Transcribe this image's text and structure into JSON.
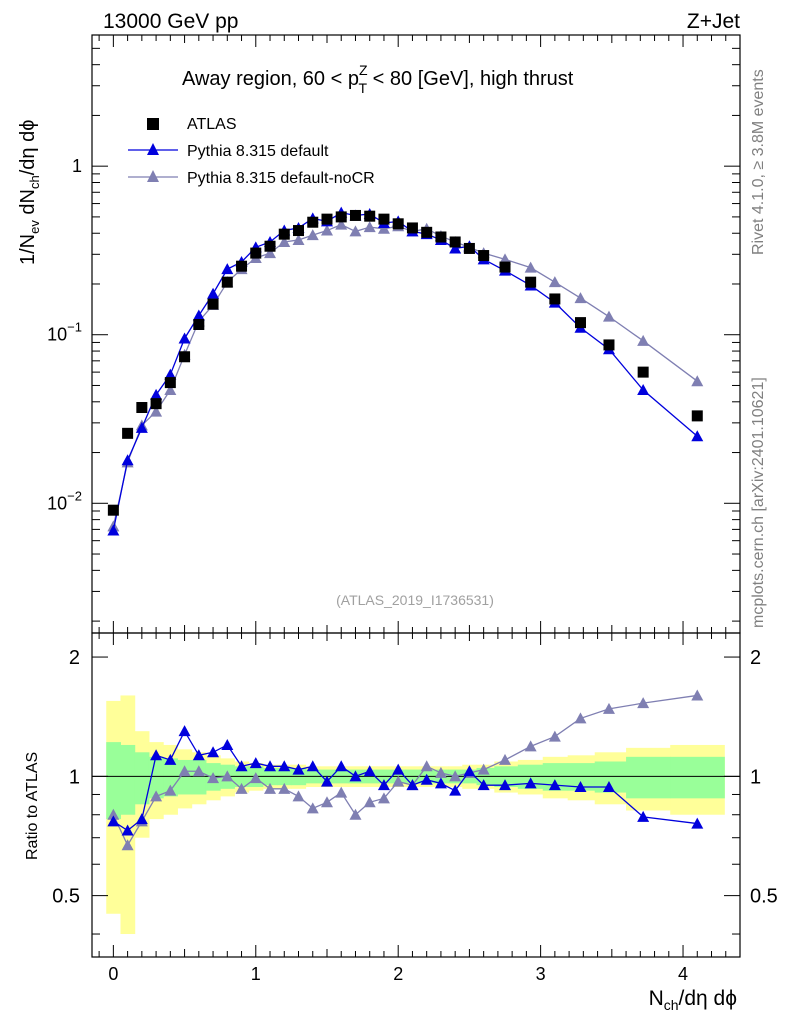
{
  "header": {
    "energy_label": "13000 GeV pp",
    "process_label": "Z+Jet"
  },
  "side_text": {
    "rivet": "Rivet 4.1.0, ≥ 3.8M events",
    "mcplots": "mcplots.cern.ch [arXiv:2401.10621]"
  },
  "chart_data": {
    "type": "line",
    "title": {
      "part1": "Away region, 60 < p",
      "sup": "Z",
      "sub": "T",
      "part2": " < 80 [GeV], high thrust"
    },
    "analysis_id": "(ATLAS_2019_I1736531)",
    "xlabel": "N",
    "xlabel_sub": "ch",
    "xlabel_rest": "/dη dϕ",
    "ylabel_main": "1/N_ev dN_ch/dη dϕ",
    "ylabel_ratio": "Ratio to ATLAS",
    "xlim": [
      -0.15,
      4.4
    ],
    "main_ylim": [
      0.0017,
      6.0
    ],
    "main_yscale": "log",
    "ratio_ylim": [
      0.35,
      2.3
    ],
    "ratio_yscale": "log",
    "x_ticks": [
      "0",
      "1",
      "2",
      "3",
      "4"
    ],
    "main_y_ticks": [
      "10^-2",
      "10^-1",
      "1"
    ],
    "ratio_y_ticks": [
      "0.5",
      "1",
      "2"
    ],
    "legend": [
      "ATLAS",
      "Pythia 8.315 default",
      "Pythia 8.315 default-noCR"
    ],
    "colors": {
      "data": "#000000",
      "default": "#0000dd",
      "nocr": "#7f7fb2",
      "band_inner": "#99ff99",
      "band_outer": "#ffff99"
    },
    "x": [
      0.0,
      0.1,
      0.2,
      0.3,
      0.4,
      0.5,
      0.6,
      0.7,
      0.8,
      0.9,
      1.0,
      1.1,
      1.2,
      1.3,
      1.4,
      1.5,
      1.6,
      1.7,
      1.8,
      1.9,
      2.0,
      2.1,
      2.2,
      2.3,
      2.4,
      2.5,
      2.6,
      2.75,
      2.93,
      3.1,
      3.28,
      3.48,
      3.72,
      4.1
    ],
    "series": [
      {
        "name": "ATLAS",
        "values": [
          0.0091,
          0.026,
          0.037,
          0.039,
          0.052,
          0.074,
          0.115,
          0.152,
          0.205,
          0.255,
          0.305,
          0.335,
          0.395,
          0.415,
          0.465,
          0.485,
          0.5,
          0.51,
          0.505,
          0.485,
          0.455,
          0.43,
          0.405,
          0.38,
          0.355,
          0.325,
          0.295,
          0.252,
          0.205,
          0.163,
          0.118,
          0.087,
          0.06,
          0.033
        ]
      },
      {
        "name": "Pythia 8.315 default",
        "values": [
          0.0069,
          0.018,
          0.028,
          0.044,
          0.058,
          0.095,
          0.13,
          0.175,
          0.245,
          0.27,
          0.33,
          0.355,
          0.415,
          0.43,
          0.49,
          0.47,
          0.53,
          0.51,
          0.52,
          0.46,
          0.47,
          0.41,
          0.395,
          0.365,
          0.325,
          0.335,
          0.28,
          0.24,
          0.196,
          0.155,
          0.11,
          0.082,
          0.047,
          0.025
        ]
      },
      {
        "name": "Pythia 8.315 default-noCR",
        "values": [
          0.0073,
          0.0175,
          0.029,
          0.035,
          0.047,
          0.076,
          0.12,
          0.15,
          0.205,
          0.245,
          0.285,
          0.305,
          0.355,
          0.365,
          0.39,
          0.415,
          0.45,
          0.41,
          0.435,
          0.425,
          0.44,
          0.41,
          0.425,
          0.385,
          0.355,
          0.33,
          0.305,
          0.28,
          0.25,
          0.205,
          0.165,
          0.128,
          0.092,
          0.053
        ]
      }
    ],
    "ratio_series": [
      {
        "name": "Pythia 8.315 default",
        "values": [
          0.77,
          0.73,
          0.78,
          1.13,
          1.1,
          1.3,
          1.13,
          1.15,
          1.2,
          1.06,
          1.08,
          1.06,
          1.06,
          1.04,
          1.06,
          0.97,
          1.06,
          1.0,
          1.03,
          0.95,
          1.04,
          0.95,
          0.98,
          0.96,
          0.92,
          1.03,
          0.95,
          0.95,
          0.96,
          0.95,
          0.94,
          0.94,
          0.79,
          0.76
        ]
      },
      {
        "name": "Pythia 8.315 default-noCR",
        "values": [
          0.8,
          0.67,
          0.77,
          0.89,
          0.92,
          1.03,
          1.03,
          0.99,
          1.0,
          0.93,
          0.99,
          0.93,
          0.93,
          0.89,
          0.83,
          0.86,
          0.91,
          0.8,
          0.86,
          0.88,
          0.97,
          0.95,
          1.06,
          1.02,
          1.0,
          1.02,
          1.04,
          1.1,
          1.19,
          1.26,
          1.4,
          1.48,
          1.53,
          1.6
        ]
      }
    ],
    "ratio_band_inner": [
      0.22,
      0.2,
      0.15,
      0.12,
      0.11,
      0.1,
      0.1,
      0.08,
      0.07,
      0.06,
      0.06,
      0.05,
      0.05,
      0.05,
      0.04,
      0.04,
      0.04,
      0.04,
      0.04,
      0.04,
      0.04,
      0.04,
      0.04,
      0.04,
      0.04,
      0.04,
      0.05,
      0.06,
      0.07,
      0.08,
      0.08,
      0.09,
      0.12,
      0.12
    ],
    "ratio_band_outer": [
      0.55,
      0.6,
      0.3,
      0.22,
      0.2,
      0.17,
      0.15,
      0.13,
      0.11,
      0.09,
      0.08,
      0.07,
      0.07,
      0.07,
      0.06,
      0.06,
      0.06,
      0.06,
      0.06,
      0.06,
      0.06,
      0.06,
      0.06,
      0.06,
      0.06,
      0.07,
      0.07,
      0.09,
      0.1,
      0.12,
      0.13,
      0.15,
      0.18,
      0.2
    ]
  }
}
